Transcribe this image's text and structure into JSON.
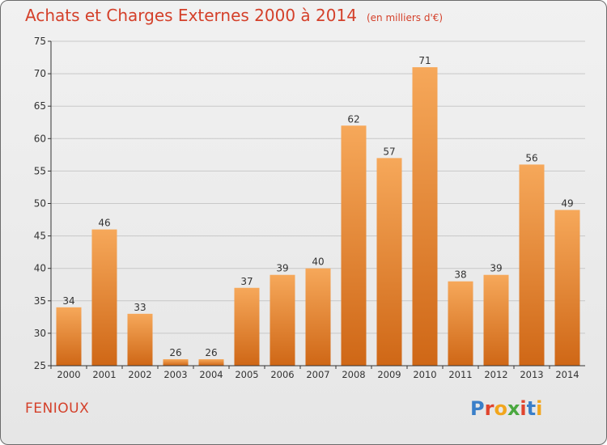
{
  "header": {
    "title": "Achats et Charges Externes 2000 à 2014",
    "subtitle": "(en milliers d'€)"
  },
  "footer": {
    "commune": "FENIOUX",
    "logo": {
      "letters": [
        "P",
        "r",
        "o",
        "x",
        "i",
        "t",
        "i"
      ],
      "colors": [
        "#3a7fc9",
        "#e0442e",
        "#f2a61d",
        "#4aa83f",
        "#e0442e",
        "#3a7fc9",
        "#f2a61d"
      ]
    }
  },
  "colors": {
    "title": "#d4402a",
    "bar_top": "#f6a85a",
    "bar_bottom": "#cf6716",
    "grid": "#c8c8c8",
    "axis": "#333333"
  },
  "chart_data": {
    "type": "bar",
    "title": "Achats et Charges Externes 2000 à 2014",
    "subtitle": "(en milliers d'€)",
    "categories": [
      "2000",
      "2001",
      "2002",
      "2003",
      "2004",
      "2005",
      "2006",
      "2007",
      "2008",
      "2009",
      "2010",
      "2011",
      "2012",
      "2013",
      "2014"
    ],
    "values": [
      34,
      46,
      33,
      26,
      26,
      37,
      39,
      40,
      62,
      57,
      71,
      38,
      39,
      56,
      49
    ],
    "xlabel": "",
    "ylabel": "",
    "ylim": [
      25,
      75
    ],
    "yticks": [
      25,
      30,
      35,
      40,
      45,
      50,
      55,
      60,
      65,
      70,
      75
    ],
    "grid": true,
    "data_labels": true
  }
}
